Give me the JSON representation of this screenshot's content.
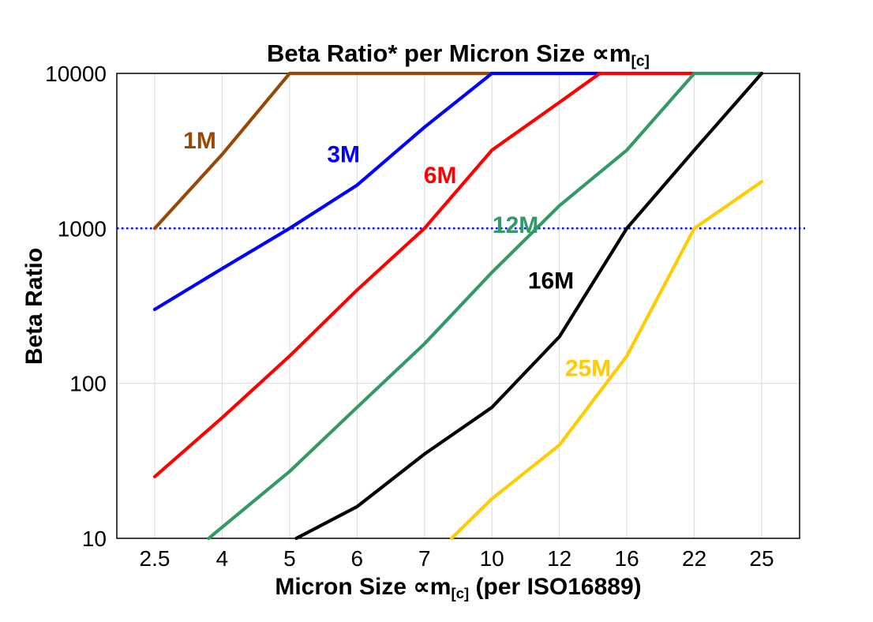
{
  "chart_data": {
    "type": "line",
    "title": {
      "main": "Beta Ratio* per Micron Size ∝m",
      "sub": "[c]"
    },
    "xlabel": {
      "main": "Micron Size ∝m",
      "sub": "[c]",
      "suffix": " (per ISO16889)"
    },
    "ylabel": "Beta Ratio",
    "x_axis": {
      "categories": [
        2.5,
        4,
        5,
        6,
        7,
        10,
        12,
        16,
        22,
        25
      ],
      "tick_labels": [
        "2.5",
        "4",
        "5",
        "6",
        "7",
        "10",
        "12",
        "16",
        "22",
        "25"
      ]
    },
    "y_axis": {
      "scale": "log",
      "min": 10,
      "max": 10000,
      "tick_labels": [
        "10",
        "100",
        "1000",
        "10000"
      ],
      "gridlines_at": [
        100,
        1000
      ]
    },
    "reference_line": {
      "y": 1000,
      "color": "#0000ff",
      "style": "dotted"
    },
    "grid_color": "#d9d9d9",
    "series": [
      {
        "name": "1M",
        "color": "#974806",
        "points": [
          [
            2.5,
            1000
          ],
          [
            4,
            3000
          ],
          [
            5,
            10000
          ],
          [
            10,
            10000
          ]
        ],
        "label": {
          "text": "1M",
          "x": 3.5,
          "y": 3700
        }
      },
      {
        "name": "3M",
        "color": "#0000ff",
        "points": [
          [
            2.5,
            300
          ],
          [
            4,
            550
          ],
          [
            5,
            1000
          ],
          [
            6,
            1900
          ],
          [
            7,
            4500
          ],
          [
            10,
            10000
          ],
          [
            14.4,
            10000
          ]
        ],
        "label": {
          "text": "3M",
          "x": 5.8,
          "y": 3000
        }
      },
      {
        "name": "6M",
        "color": "#ff0000",
        "points": [
          [
            2.5,
            25
          ],
          [
            4,
            60
          ],
          [
            5,
            150
          ],
          [
            6,
            400
          ],
          [
            7,
            1000
          ],
          [
            10,
            3200
          ],
          [
            12,
            6500
          ],
          [
            14.4,
            10000
          ],
          [
            22,
            10000
          ]
        ],
        "label": {
          "text": "6M",
          "x": 7.7,
          "y": 2200
        }
      },
      {
        "name": "12M",
        "color": "#339966",
        "points": [
          [
            3.7,
            10
          ],
          [
            5,
            27
          ],
          [
            6,
            70
          ],
          [
            7,
            180
          ],
          [
            10,
            520
          ],
          [
            12,
            1400
          ],
          [
            16,
            3200
          ],
          [
            22,
            10000
          ],
          [
            25,
            10000
          ]
        ],
        "label": {
          "text": "12M",
          "x": 10.7,
          "y": 1050
        }
      },
      {
        "name": "16M",
        "color": "#000000",
        "points": [
          [
            5.1,
            10
          ],
          [
            6,
            16
          ],
          [
            7,
            35
          ],
          [
            10,
            70
          ],
          [
            12,
            200
          ],
          [
            16,
            1000
          ],
          [
            22,
            3200
          ],
          [
            25,
            10000
          ]
        ],
        "label": {
          "text": "16M",
          "x": 11.75,
          "y": 460
        }
      },
      {
        "name": "25M",
        "color": "#ffcc00",
        "points": [
          [
            8.2,
            10
          ],
          [
            10,
            18
          ],
          [
            12,
            40
          ],
          [
            16,
            150
          ],
          [
            22,
            1000
          ],
          [
            25,
            2000
          ]
        ],
        "label": {
          "text": "25M",
          "x": 13.7,
          "y": 125
        }
      }
    ]
  }
}
